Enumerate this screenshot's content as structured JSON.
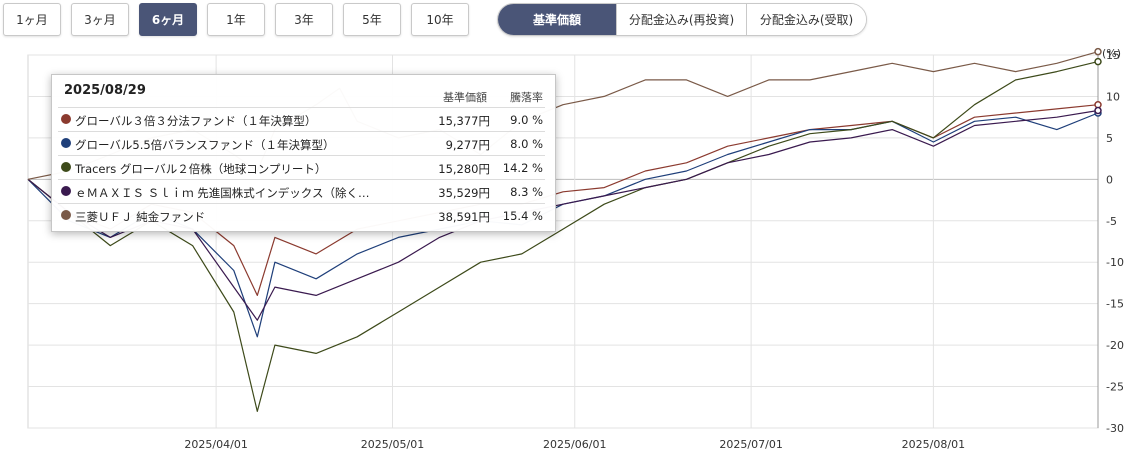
{
  "periods": [
    "1ヶ月",
    "3ヶ月",
    "6ヶ月",
    "1年",
    "3年",
    "5年",
    "10年"
  ],
  "active_period": "6ヶ月",
  "price_types": [
    "基準価額",
    "分配金込み(再投資)",
    "分配金込み(受取)"
  ],
  "active_price_type": "基準価額",
  "tooltip": {
    "date": "2025/08/29",
    "col_price": "基準価額",
    "col_pct": "騰落率",
    "rows": [
      {
        "name": "グローバル３倍３分法ファンド（１年決算型）",
        "price": "15,377円",
        "pct": "9.0 %",
        "color": "#8b3a2f"
      },
      {
        "name": "グローバル5.5倍バランスファンド（１年決算型）",
        "price": "9,277円",
        "pct": "8.0 %",
        "color": "#1f3f7a"
      },
      {
        "name": "Tracers グローバル２倍株（地球コンプリート）",
        "price": "15,280円",
        "pct": "14.2 %",
        "color": "#3d4a1a"
      },
      {
        "name": "ｅＭＡＸＩＳ Ｓｌｉｍ 先進国株式インデックス（除く…",
        "price": "35,529円",
        "pct": "8.3 %",
        "color": "#3a1a4f"
      },
      {
        "name": "三菱ＵＦＪ 純金ファンド",
        "price": "38,591円",
        "pct": "15.4 %",
        "color": "#7a5a48"
      }
    ]
  },
  "chart_data": {
    "type": "line",
    "title": "",
    "xlabel": "",
    "ylabel": "(%)",
    "x_start": "2025-02-28",
    "x_end": "2025-08-29",
    "ylim": [
      -30,
      15
    ],
    "y_ticks": [
      -30,
      -25,
      -20,
      -15,
      -10,
      -5,
      0,
      5,
      10,
      15
    ],
    "x_ticks": [
      "2025/04/01",
      "2025/05/01",
      "2025/06/01",
      "2025/07/01",
      "2025/08/01"
    ],
    "x_tick_dates": [
      "2025-04-01",
      "2025-05-01",
      "2025-06-01",
      "2025-07-01",
      "2025-08-01"
    ],
    "grid": true,
    "series": [
      {
        "name": "グローバル３倍３分法ファンド（１年決算型）",
        "color": "#8b3a2f",
        "points": [
          [
            "2025-02-28",
            0
          ],
          [
            "2025-03-07",
            -4
          ],
          [
            "2025-03-14",
            -6
          ],
          [
            "2025-03-21",
            -3
          ],
          [
            "2025-03-28",
            -4
          ],
          [
            "2025-04-04",
            -8
          ],
          [
            "2025-04-08",
            -14
          ],
          [
            "2025-04-11",
            -7
          ],
          [
            "2025-04-18",
            -9
          ],
          [
            "2025-04-25",
            -6
          ],
          [
            "2025-05-02",
            -5
          ],
          [
            "2025-05-09",
            -4
          ],
          [
            "2025-05-16",
            -3
          ],
          [
            "2025-05-23",
            -3
          ],
          [
            "2025-05-30",
            -1.5
          ],
          [
            "2025-06-06",
            -1
          ],
          [
            "2025-06-13",
            1
          ],
          [
            "2025-06-20",
            2
          ],
          [
            "2025-06-27",
            4
          ],
          [
            "2025-07-04",
            5
          ],
          [
            "2025-07-11",
            6
          ],
          [
            "2025-07-18",
            6.5
          ],
          [
            "2025-07-25",
            7
          ],
          [
            "2025-08-01",
            5
          ],
          [
            "2025-08-08",
            7.5
          ],
          [
            "2025-08-15",
            8
          ],
          [
            "2025-08-22",
            8.5
          ],
          [
            "2025-08-29",
            9
          ]
        ]
      },
      {
        "name": "グローバル5.5倍バランスファンド（１年決算型）",
        "color": "#1f3f7a",
        "points": [
          [
            "2025-02-28",
            0
          ],
          [
            "2025-03-07",
            -5
          ],
          [
            "2025-03-14",
            -7
          ],
          [
            "2025-03-21",
            -4
          ],
          [
            "2025-03-28",
            -6
          ],
          [
            "2025-04-04",
            -11
          ],
          [
            "2025-04-08",
            -19
          ],
          [
            "2025-04-11",
            -10
          ],
          [
            "2025-04-18",
            -12
          ],
          [
            "2025-04-25",
            -9
          ],
          [
            "2025-05-02",
            -7
          ],
          [
            "2025-05-09",
            -6
          ],
          [
            "2025-05-16",
            -5
          ],
          [
            "2025-05-23",
            -5.5
          ],
          [
            "2025-05-30",
            -3
          ],
          [
            "2025-06-06",
            -2
          ],
          [
            "2025-06-13",
            0
          ],
          [
            "2025-06-20",
            1
          ],
          [
            "2025-06-27",
            3
          ],
          [
            "2025-07-04",
            4.5
          ],
          [
            "2025-07-11",
            6
          ],
          [
            "2025-07-18",
            6
          ],
          [
            "2025-07-25",
            7
          ],
          [
            "2025-08-01",
            4.5
          ],
          [
            "2025-08-08",
            7
          ],
          [
            "2025-08-15",
            7.5
          ],
          [
            "2025-08-22",
            6
          ],
          [
            "2025-08-29",
            8
          ]
        ]
      },
      {
        "name": "Tracers グローバル２倍株（地球コンプリート）",
        "color": "#3d4a1a",
        "points": [
          [
            "2025-02-28",
            0
          ],
          [
            "2025-03-07",
            -4
          ],
          [
            "2025-03-14",
            -8
          ],
          [
            "2025-03-21",
            -5
          ],
          [
            "2025-03-28",
            -8
          ],
          [
            "2025-04-04",
            -16
          ],
          [
            "2025-04-08",
            -28
          ],
          [
            "2025-04-11",
            -20
          ],
          [
            "2025-04-18",
            -21
          ],
          [
            "2025-04-25",
            -19
          ],
          [
            "2025-05-02",
            -16
          ],
          [
            "2025-05-09",
            -13
          ],
          [
            "2025-05-16",
            -10
          ],
          [
            "2025-05-23",
            -9
          ],
          [
            "2025-05-30",
            -6
          ],
          [
            "2025-06-06",
            -3
          ],
          [
            "2025-06-13",
            -1
          ],
          [
            "2025-06-20",
            0
          ],
          [
            "2025-06-27",
            2
          ],
          [
            "2025-07-04",
            4
          ],
          [
            "2025-07-11",
            5.5
          ],
          [
            "2025-07-18",
            6
          ],
          [
            "2025-07-25",
            7
          ],
          [
            "2025-08-01",
            5
          ],
          [
            "2025-08-08",
            9
          ],
          [
            "2025-08-15",
            12
          ],
          [
            "2025-08-22",
            13
          ],
          [
            "2025-08-29",
            14.2
          ]
        ]
      },
      {
        "name": "ｅＭＡＸＩＳ Ｓｌｉｍ 先進国株式インデックス（除く…",
        "color": "#3a1a4f",
        "points": [
          [
            "2025-02-28",
            0
          ],
          [
            "2025-03-07",
            -4
          ],
          [
            "2025-03-14",
            -7
          ],
          [
            "2025-03-21",
            -5
          ],
          [
            "2025-03-28",
            -6
          ],
          [
            "2025-04-04",
            -13
          ],
          [
            "2025-04-08",
            -17
          ],
          [
            "2025-04-11",
            -13
          ],
          [
            "2025-04-18",
            -14
          ],
          [
            "2025-04-25",
            -12
          ],
          [
            "2025-05-02",
            -10
          ],
          [
            "2025-05-09",
            -7
          ],
          [
            "2025-05-16",
            -5
          ],
          [
            "2025-05-23",
            -4
          ],
          [
            "2025-05-30",
            -3
          ],
          [
            "2025-06-06",
            -2
          ],
          [
            "2025-06-13",
            -1
          ],
          [
            "2025-06-20",
            0
          ],
          [
            "2025-06-27",
            2
          ],
          [
            "2025-07-04",
            3
          ],
          [
            "2025-07-11",
            4.5
          ],
          [
            "2025-07-18",
            5
          ],
          [
            "2025-07-25",
            6
          ],
          [
            "2025-08-01",
            4
          ],
          [
            "2025-08-08",
            6.5
          ],
          [
            "2025-08-15",
            7
          ],
          [
            "2025-08-22",
            7.5
          ],
          [
            "2025-08-29",
            8.3
          ]
        ]
      },
      {
        "name": "三菱ＵＦＪ 純金ファンド",
        "color": "#7a5a48",
        "points": [
          [
            "2025-02-28",
            0
          ],
          [
            "2025-03-07",
            1
          ],
          [
            "2025-03-14",
            3
          ],
          [
            "2025-03-21",
            5
          ],
          [
            "2025-03-28",
            6
          ],
          [
            "2025-04-04",
            3
          ],
          [
            "2025-04-08",
            1
          ],
          [
            "2025-04-11",
            6
          ],
          [
            "2025-04-18",
            9
          ],
          [
            "2025-04-22",
            11
          ],
          [
            "2025-04-25",
            7
          ],
          [
            "2025-05-02",
            5
          ],
          [
            "2025-05-09",
            6
          ],
          [
            "2025-05-16",
            3
          ],
          [
            "2025-05-23",
            7
          ],
          [
            "2025-05-30",
            9
          ],
          [
            "2025-06-06",
            10
          ],
          [
            "2025-06-13",
            12
          ],
          [
            "2025-06-20",
            12
          ],
          [
            "2025-06-27",
            10
          ],
          [
            "2025-07-04",
            12
          ],
          [
            "2025-07-11",
            12
          ],
          [
            "2025-07-18",
            13
          ],
          [
            "2025-07-25",
            14
          ],
          [
            "2025-08-01",
            13
          ],
          [
            "2025-08-08",
            14
          ],
          [
            "2025-08-15",
            13
          ],
          [
            "2025-08-22",
            14
          ],
          [
            "2025-08-29",
            15.4
          ]
        ]
      }
    ]
  }
}
